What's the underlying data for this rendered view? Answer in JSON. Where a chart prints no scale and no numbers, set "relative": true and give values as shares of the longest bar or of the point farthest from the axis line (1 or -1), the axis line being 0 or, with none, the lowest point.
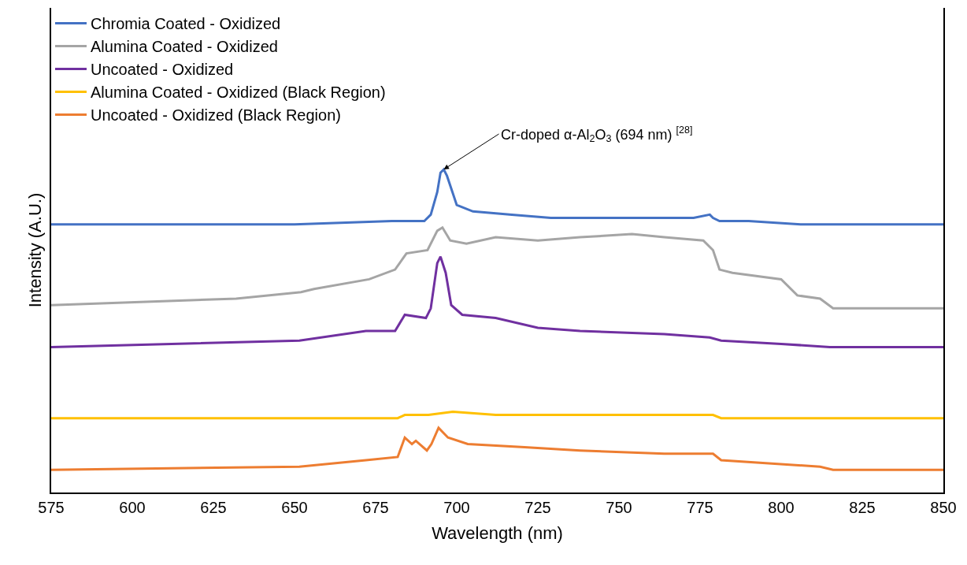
{
  "chart_data": {
    "type": "line",
    "relative": true,
    "xlabel": "Wavelength (nm)",
    "ylabel": "Intensity (A.U.)",
    "xlim": [
      575,
      850
    ],
    "xticks": [
      575,
      600,
      625,
      650,
      675,
      700,
      725,
      750,
      775,
      800,
      825,
      850
    ],
    "legend": "top left",
    "marker": "none",
    "line_style": "solid",
    "annotations": [
      {
        "text": "Cr-doped α-Al$_{2}$O$_{3}$ (694 nm) $^{[28]}$",
        "x": 696,
        "y": 1.0
      }
    ],
    "series": [
      {
        "name": "Chromia Coated - Oxidized",
        "color": "#4472c4",
        "x": [
          575,
          650,
          680,
          690,
          692,
          694,
          695,
          696,
          697,
          699,
          700,
          705,
          717,
          729,
          753,
          773,
          778,
          779,
          781,
          790,
          806,
          814,
          850
        ],
        "values": [
          0.83,
          0.83,
          0.84,
          0.84,
          0.86,
          0.93,
          0.99,
          1.0,
          0.98,
          0.92,
          0.89,
          0.87,
          0.86,
          0.85,
          0.85,
          0.85,
          0.86,
          0.85,
          0.84,
          0.84,
          0.83,
          0.83,
          0.83
        ]
      },
      {
        "name": "Alumina Coated - Oxidized",
        "color": "#a5a5a5",
        "x": [
          575,
          632,
          652,
          656,
          673,
          681,
          684.5,
          691,
          694,
          695.6,
          698,
          703,
          712,
          725,
          738,
          754,
          764,
          776,
          779,
          781,
          785,
          800,
          805,
          812,
          816,
          850
        ],
        "values": [
          0.58,
          0.6,
          0.62,
          0.63,
          0.66,
          0.69,
          0.74,
          0.75,
          0.81,
          0.82,
          0.78,
          0.77,
          0.79,
          0.78,
          0.79,
          0.8,
          0.79,
          0.78,
          0.75,
          0.69,
          0.68,
          0.66,
          0.61,
          0.6,
          0.57,
          0.57
        ]
      },
      {
        "name": "Uncoated - Oxidized",
        "color": "#7030a0",
        "x": [
          575,
          651.5,
          672,
          681,
          684,
          690.5,
          692,
          694,
          695,
          696.6,
          698.3,
          701.7,
          712,
          725,
          738,
          764,
          778,
          781.5,
          800,
          815,
          850
        ],
        "values": [
          0.45,
          0.47,
          0.5,
          0.5,
          0.55,
          0.54,
          0.57,
          0.71,
          0.73,
          0.68,
          0.58,
          0.55,
          0.54,
          0.51,
          0.5,
          0.49,
          0.48,
          0.47,
          0.46,
          0.45,
          0.45
        ]
      },
      {
        "name": "Alumina Coated - Oxidized (Black Region)",
        "color": "#ffc000",
        "x": [
          575,
          681.8,
          684,
          691.3,
          698.8,
          712,
          779,
          781.5,
          850
        ],
        "values": [
          0.23,
          0.23,
          0.24,
          0.24,
          0.25,
          0.24,
          0.24,
          0.23,
          0.23
        ]
      },
      {
        "name": "Uncoated - Oxidized (Black Region)",
        "color": "#ed7d31",
        "x": [
          575,
          651.5,
          672,
          681.8,
          684,
          686.2,
          687.4,
          690.8,
          692.2,
          694.4,
          697.3,
          703.4,
          720.9,
          738,
          764,
          779,
          781.5,
          812,
          816,
          850
        ],
        "values": [
          0.07,
          0.08,
          0.1,
          0.11,
          0.17,
          0.15,
          0.16,
          0.13,
          0.15,
          0.2,
          0.17,
          0.15,
          0.14,
          0.13,
          0.12,
          0.12,
          0.1,
          0.08,
          0.07,
          0.07
        ]
      }
    ]
  }
}
